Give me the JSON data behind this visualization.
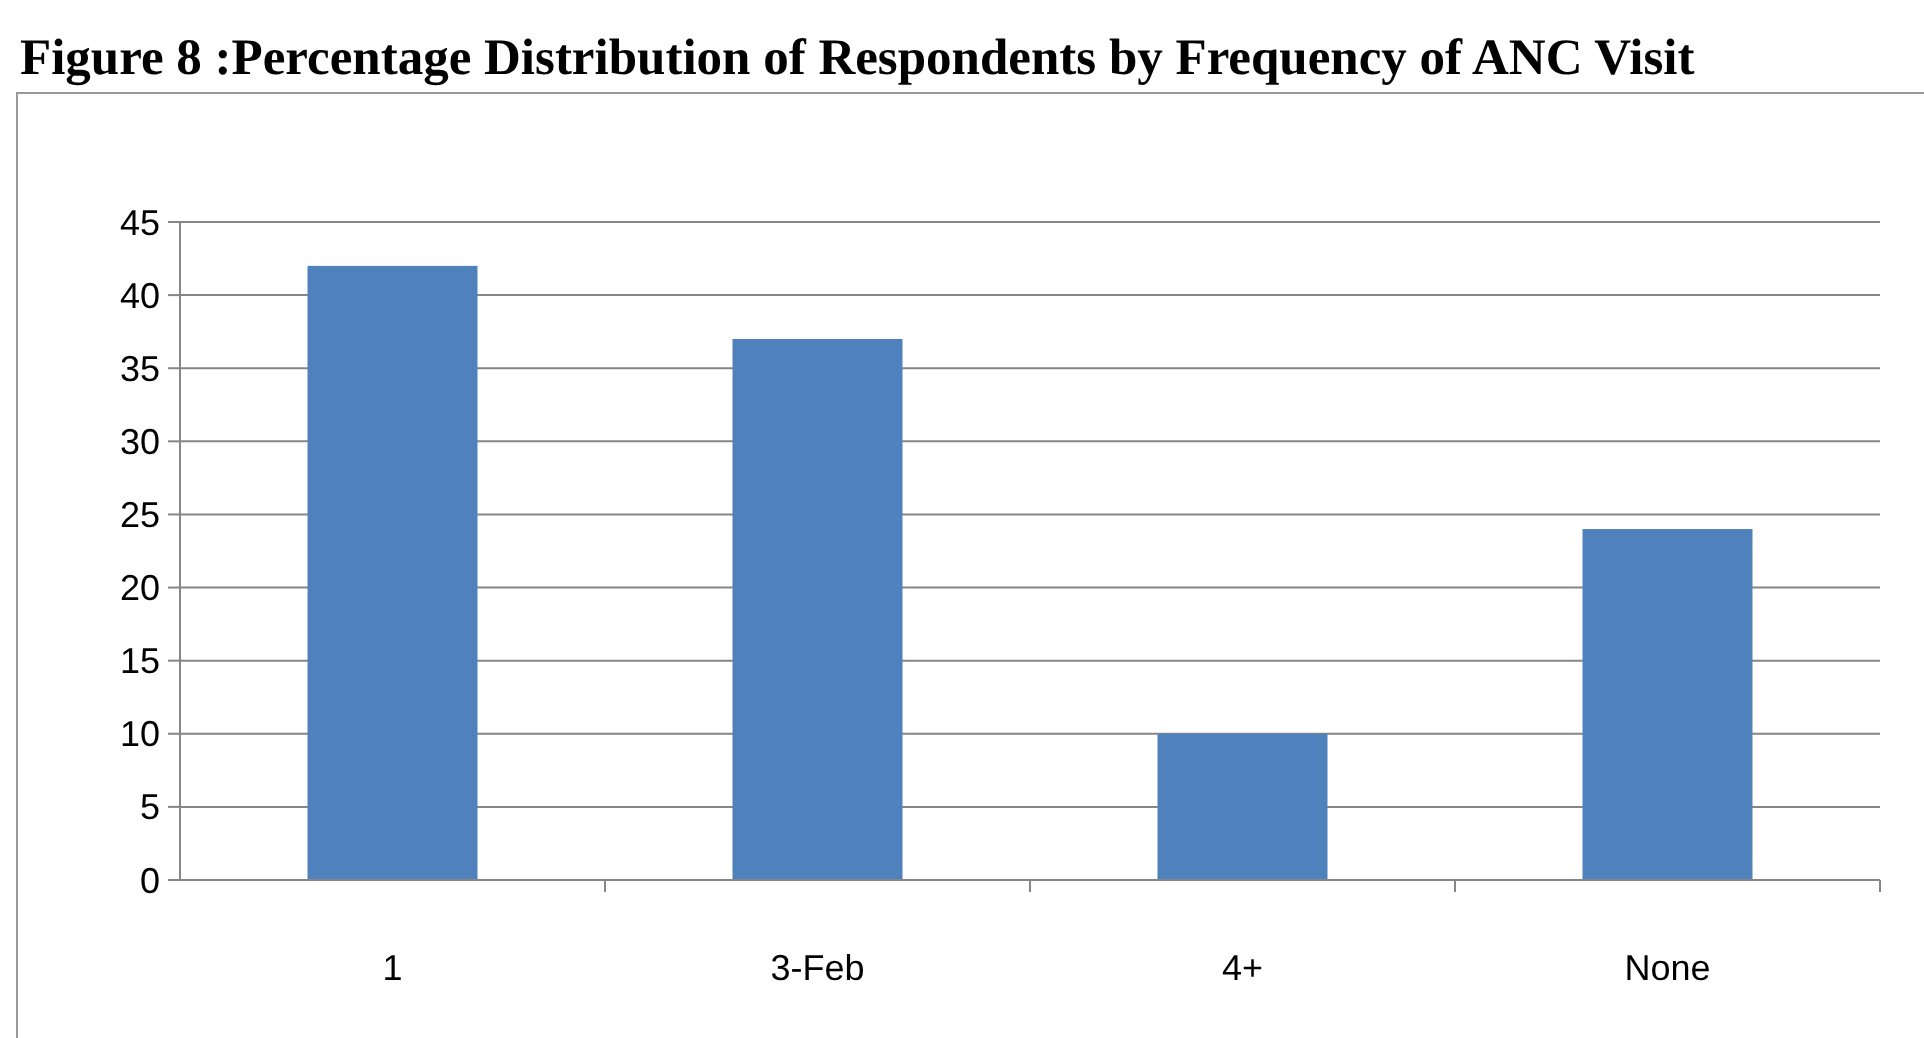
{
  "chart_data": {
    "type": "bar",
    "title": "Figure 8 :Percentage Distribution of Respondents by Frequency of ANC Visit",
    "categories": [
      "1",
      "3-Feb",
      "4+",
      "None"
    ],
    "values": [
      42,
      37,
      10,
      24
    ],
    "color": "#4f81bd",
    "ylim": [
      0,
      45
    ],
    "yticks": [
      0,
      5,
      10,
      15,
      20,
      25,
      30,
      35,
      40,
      45
    ],
    "grid": "y"
  }
}
